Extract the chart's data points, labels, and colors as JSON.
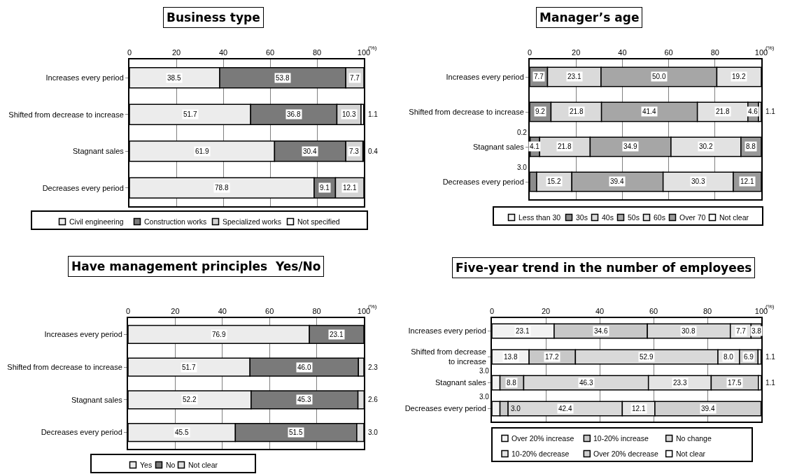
{
  "chart_data": [
    {
      "type": "bar",
      "title": "Business type",
      "xlabel": "(%)",
      "orientation": "horizontal",
      "stacked": true,
      "categories": [
        "Increases every period",
        "Shifted from decrease to increase",
        "Stagnant sales",
        "Decreases every period"
      ],
      "xlim": [
        0,
        100
      ],
      "xticks": [
        0,
        20,
        40,
        60,
        80,
        100
      ],
      "grid": "x",
      "legend": "bottom",
      "series": [
        {
          "name": "Civil engineering",
          "color": "#ececec",
          "values": [
            38.5,
            51.7,
            61.9,
            78.8
          ],
          "value_labels": [
            "38.5",
            "51.7",
            "61.9",
            "78.8"
          ]
        },
        {
          "name": "Construction works",
          "color": "#7a7a7a",
          "values": [
            53.8,
            36.8,
            30.4,
            9.1
          ],
          "value_labels": [
            "53.8",
            "36.8",
            "30.4",
            "9.1"
          ]
        },
        {
          "name": "Specialized works",
          "color": "#d4d4d4",
          "values": [
            7.7,
            10.3,
            7.3,
            12.1
          ],
          "value_labels": [
            "7.7",
            "10.3",
            "7.3",
            "12.1"
          ]
        },
        {
          "name": "Not specified",
          "color": "#ffffff",
          "values": [
            null,
            1.1,
            0.4,
            null
          ],
          "value_labels": [
            null,
            "1.1",
            "0.4",
            null
          ]
        }
      ]
    },
    {
      "type": "bar",
      "title": "Manager’s age",
      "xlabel": "(%)",
      "orientation": "horizontal",
      "stacked": true,
      "categories": [
        "Increases every period",
        "Shifted from decrease to increase",
        "Stagnant sales",
        "Decreases every period"
      ],
      "xlim": [
        0,
        100
      ],
      "xticks": [
        0,
        20,
        40,
        60,
        80,
        100
      ],
      "grid": "x",
      "legend": "bottom",
      "series": [
        {
          "name": "Less than 30",
          "color": "#f2f2f2",
          "values": [
            null,
            null,
            0.2,
            null
          ],
          "value_labels": [
            null,
            null,
            "0.2",
            null
          ]
        },
        {
          "name": "30s",
          "color": "#8c8c8c",
          "values": [
            7.7,
            9.2,
            4.1,
            3.0
          ],
          "value_labels": [
            "7.7",
            "9.2",
            "4.1",
            "3.0"
          ]
        },
        {
          "name": "40s",
          "color": "#dadada",
          "values": [
            23.1,
            21.8,
            21.8,
            15.2
          ],
          "value_labels": [
            "23.1",
            "21.8",
            "21.8",
            "15.2"
          ]
        },
        {
          "name": "50s",
          "color": "#a6a6a6",
          "values": [
            50.0,
            41.4,
            34.9,
            39.4
          ],
          "value_labels": [
            "50.0",
            "41.4",
            "34.9",
            "39.4"
          ]
        },
        {
          "name": "60s",
          "color": "#e2e2e2",
          "values": [
            19.2,
            21.8,
            30.2,
            30.3
          ],
          "value_labels": [
            "19.2",
            "21.8",
            "30.2",
            "30.3"
          ]
        },
        {
          "name": "Over 70",
          "color": "#999999",
          "values": [
            null,
            4.6,
            8.8,
            12.1
          ],
          "value_labels": [
            null,
            "4.6",
            "8.8",
            "12.1"
          ]
        },
        {
          "name": "Not clear",
          "color": "#ffffff",
          "values": [
            null,
            1.1,
            null,
            null
          ],
          "value_labels": [
            null,
            "1.1",
            null,
            null
          ]
        }
      ]
    },
    {
      "type": "bar",
      "title": "Have management principles  Yes/No",
      "xlabel": "(%)",
      "orientation": "horizontal",
      "stacked": true,
      "categories": [
        "Increases every period",
        "Shifted from decrease to increase",
        "Stagnant sales",
        "Decreases every period"
      ],
      "xlim": [
        0,
        100
      ],
      "xticks": [
        0,
        20,
        40,
        60,
        80,
        100
      ],
      "grid": "x",
      "legend": "bottom",
      "series": [
        {
          "name": "Yes",
          "color": "#ececec",
          "values": [
            76.9,
            51.7,
            52.2,
            45.5
          ],
          "value_labels": [
            "76.9",
            "51.7",
            "52.2",
            "45.5"
          ]
        },
        {
          "name": "No",
          "color": "#7a7a7a",
          "values": [
            23.1,
            46.0,
            45.3,
            51.5
          ],
          "value_labels": [
            "23.1",
            "46.0",
            "45.3",
            "51.5"
          ]
        },
        {
          "name": "Not clear",
          "color": "#e0e0e0",
          "values": [
            null,
            2.3,
            2.6,
            3.0
          ],
          "value_labels": [
            null,
            "2.3",
            "2.6",
            "3.0"
          ]
        }
      ]
    },
    {
      "type": "bar",
      "title": "Five-year trend in the number of employees",
      "xlabel": "(%)",
      "orientation": "horizontal",
      "stacked": true,
      "categories": [
        "Increases every period",
        "Shifted from decrease to increase",
        "Stagnant sales",
        "Decreases every period"
      ],
      "xlim": [
        0,
        100
      ],
      "xticks": [
        0,
        20,
        40,
        60,
        80,
        100
      ],
      "grid": "x",
      "legend": "bottom",
      "series": [
        {
          "name": "Over 20% increase",
          "color": "#f2f2f2",
          "values": [
            23.1,
            13.8,
            3.0,
            3.0
          ],
          "value_labels": [
            "23.1",
            "13.8",
            "3.0",
            "3.0"
          ]
        },
        {
          "name": "10-20% increase",
          "color": "#c8c8c8",
          "values": [
            34.6,
            17.2,
            8.8,
            3.0
          ],
          "value_labels": [
            "34.6",
            "17.2",
            "8.8",
            "3.0"
          ]
        },
        {
          "name": "No change",
          "color": "#d9d9d9",
          "values": [
            30.8,
            52.9,
            46.3,
            42.4
          ],
          "value_labels": [
            "30.8",
            "52.9",
            "46.3",
            "42.4"
          ]
        },
        {
          "name": "10-20% decrease",
          "color": "#e4e4e4",
          "values": [
            7.7,
            8.0,
            23.3,
            12.1
          ],
          "value_labels": [
            "7.7",
            "8.0",
            "23.3",
            "12.1"
          ]
        },
        {
          "name": "Over 20% decrease",
          "color": "#d0d0d0",
          "values": [
            3.8,
            6.9,
            17.5,
            39.4
          ],
          "value_labels": [
            "3.8",
            "6.9",
            "17.5",
            "39.4"
          ]
        },
        {
          "name": "Not clear",
          "color": "#ffffff",
          "values": [
            null,
            1.1,
            1.1,
            null
          ],
          "value_labels": [
            null,
            "1.1",
            "1.1",
            null
          ]
        }
      ]
    }
  ]
}
